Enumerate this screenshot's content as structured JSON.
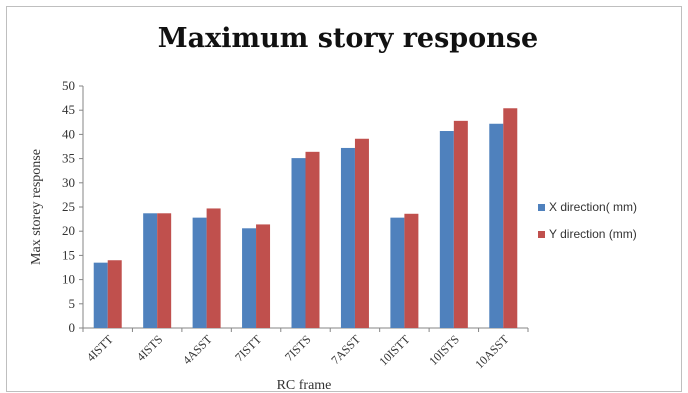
{
  "chart_data": {
    "type": "bar",
    "title": "Maximum story response",
    "xlabel": "RC frame",
    "ylabel": "Max storey response",
    "categories": [
      "4ISTT",
      "4ISTS",
      "4ASST",
      "7ISTT",
      "7ISTS",
      "7ASST",
      "10ISTT",
      "10ISTS",
      "10ASST"
    ],
    "series": [
      {
        "name": "X direction( mm)",
        "color": "#4f81bd",
        "values": [
          13.5,
          23.7,
          22.8,
          20.6,
          35.1,
          37.2,
          22.8,
          40.7,
          42.2
        ]
      },
      {
        "name": "Y direction (mm)",
        "color": "#c0504d",
        "values": [
          14.0,
          23.7,
          24.7,
          21.4,
          36.4,
          39.1,
          23.6,
          42.8,
          45.4
        ]
      }
    ],
    "ylim": [
      0,
      50
    ],
    "yticks": [
      0,
      5,
      10,
      15,
      20,
      25,
      30,
      35,
      40,
      45,
      50
    ],
    "grid": false,
    "legend": "right"
  }
}
